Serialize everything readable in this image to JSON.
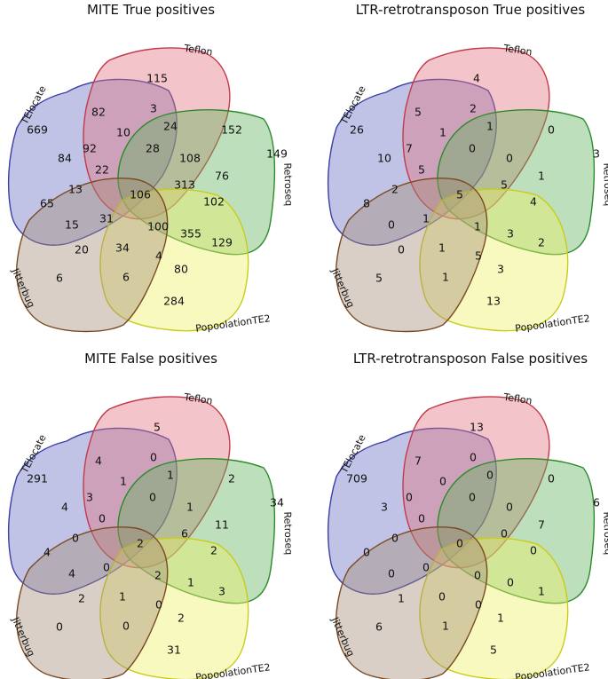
{
  "sets": [
    {
      "key": "teloc",
      "name": "TElocate",
      "color": "#3b3fa6",
      "fill": "#6a70c4"
    },
    {
      "key": "teflon",
      "name": "Teflon",
      "color": "#c23a4a",
      "fill": "#e3727f"
    },
    {
      "key": "retro",
      "name": "Retroseq",
      "color": "#2d8a2a",
      "fill": "#62b25c"
    },
    {
      "key": "popo",
      "name": "PopoolationTE2",
      "color": "#c8cc1a",
      "fill": "#eef067"
    },
    {
      "key": "jitter",
      "name": "Jitterbug",
      "color": "#7a4a22",
      "fill": "#a58c78"
    }
  ],
  "region_order": [
    "TEl only",
    "Tef only",
    "Ret only",
    "Pop only",
    "Jit only",
    "TEl-Tef",
    "Tef-Ret",
    "Ret-Pop",
    "Pop-Jit",
    "Jit-TEl",
    "TEl-Ret",
    "Tef-Pop",
    "Ret-Jit",
    "Pop-TEl",
    "Jit-Tef",
    "TEl-Tef-Ret",
    "Tef-Ret-Pop",
    "Ret-Pop-Jit",
    "Pop-Jit-TEl",
    "Jit-TEl-Tef",
    "TEl-Ret-Pop",
    "Tef-Pop-Jit",
    "Ret-Jit-TEl",
    "Pop-TEl-Tef",
    "Jit-Tef-Ret",
    "not-TEl",
    "not-Tef",
    "not-Ret",
    "not-Pop",
    "not-Jit",
    "all"
  ],
  "panels": [
    {
      "title": "MITE True positives",
      "counts": [
        "669",
        "115",
        "149",
        "284",
        "6",
        "82",
        "152",
        "129",
        "6",
        "65",
        "3",
        "80",
        "20",
        "92",
        "10",
        "24",
        "76",
        "34",
        "84",
        "13",
        "108",
        "4",
        "15",
        "22",
        "28",
        "313",
        "355",
        "31",
        "106",
        "102",
        "100"
      ]
    },
    {
      "title": "LTR-retrotransposon True positives",
      "counts": [
        "26",
        "4",
        "3",
        "13",
        "5",
        "5",
        "0",
        "2",
        "1",
        "8",
        "2",
        "3",
        "0",
        "7",
        "1",
        "1",
        "1",
        "1",
        "10",
        "2",
        "0",
        "5",
        "0",
        "5",
        "0",
        "5",
        "3",
        "1",
        "5",
        "4",
        "1"
      ]
    },
    {
      "title": "MITE False positives",
      "counts": [
        "291",
        "5",
        "34",
        "31",
        "0",
        "4",
        "2",
        "3",
        "0",
        "4",
        "0",
        "2",
        "2",
        "3",
        "1",
        "1",
        "11",
        "1",
        "4",
        "0",
        "1",
        "0",
        "4",
        "0",
        "0",
        "6",
        "1",
        "0",
        "2",
        "2",
        "2"
      ]
    },
    {
      "title": "LTR-retrotransposon False positives",
      "counts": [
        "709",
        "13",
        "6",
        "5",
        "6",
        "7",
        "0",
        "1",
        "1",
        "0",
        "0",
        "1",
        "1",
        "0",
        "0",
        "0",
        "7",
        "0",
        "3",
        "0",
        "0",
        "0",
        "0",
        "0",
        "0",
        "0",
        "0",
        "0",
        "0",
        "0",
        "0"
      ]
    }
  ]
}
